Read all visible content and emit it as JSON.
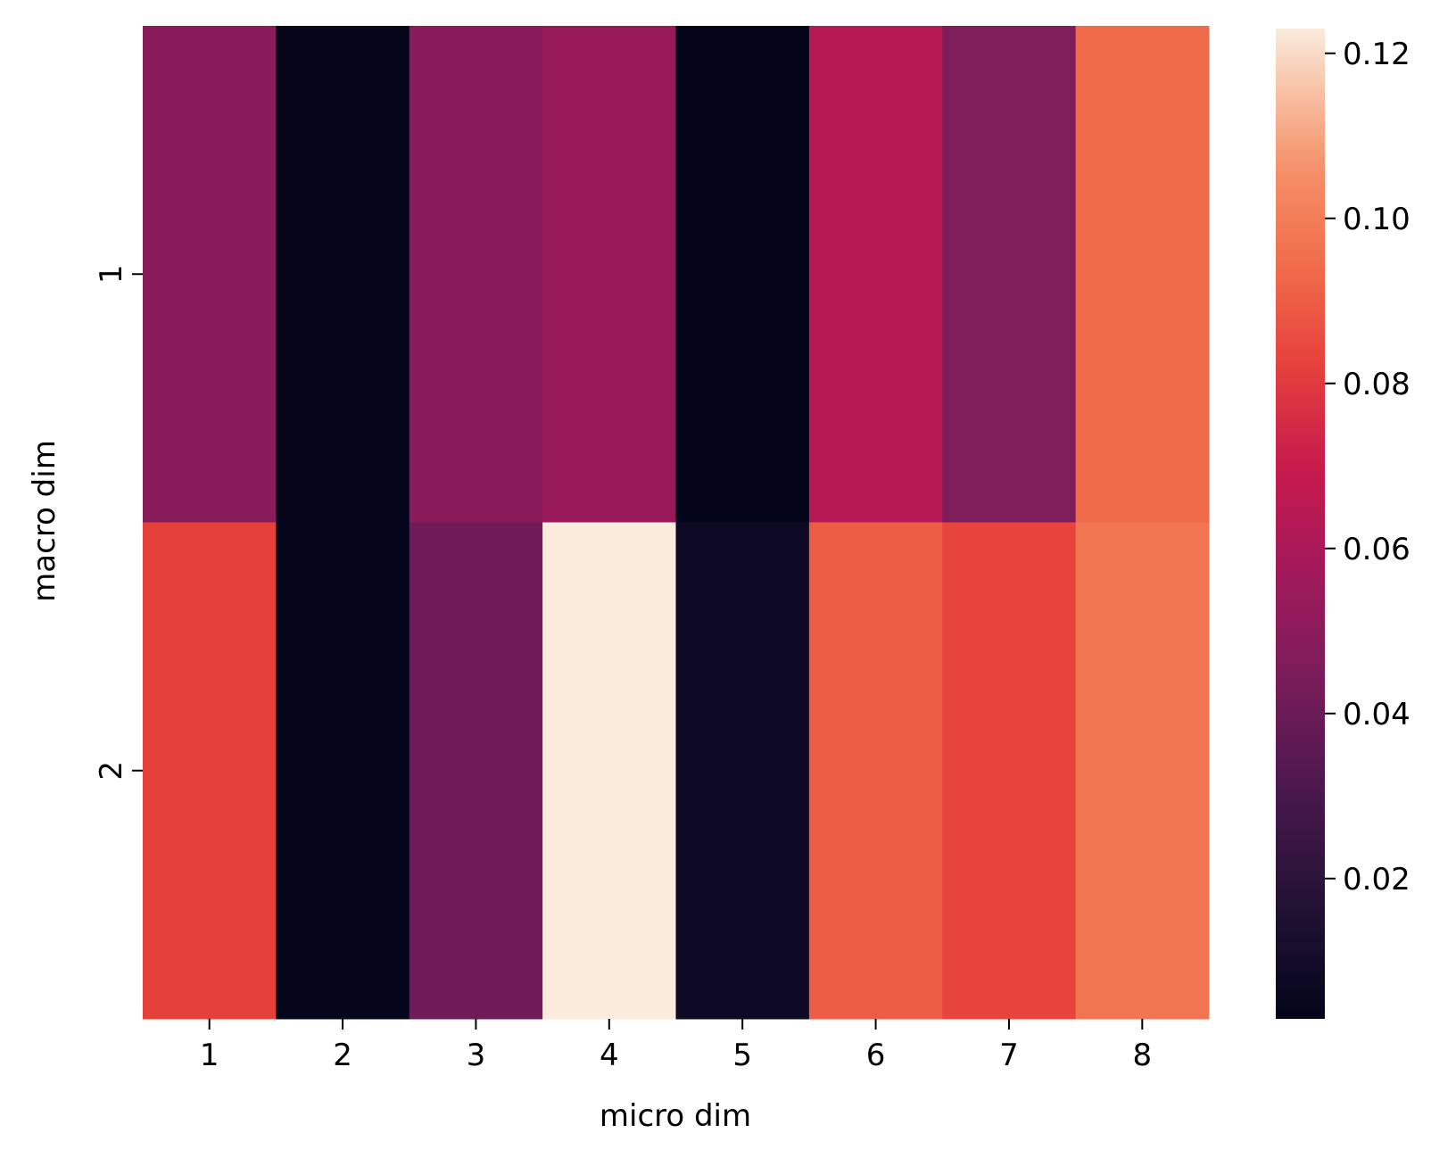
{
  "chart_data": {
    "type": "heatmap",
    "title": "",
    "xlabel": "micro dim",
    "ylabel": "macro dim",
    "x_categories": [
      "1",
      "2",
      "3",
      "4",
      "5",
      "6",
      "7",
      "8"
    ],
    "y_categories": [
      "1",
      "2"
    ],
    "values": [
      [
        0.049,
        0.004,
        0.049,
        0.054,
        0.003,
        0.064,
        0.046,
        0.094
      ],
      [
        0.082,
        0.004,
        0.041,
        0.123,
        0.008,
        0.09,
        0.083,
        0.097
      ]
    ],
    "colorbar": {
      "min": 0.003,
      "max": 0.123,
      "ticks": [
        0.02,
        0.04,
        0.06,
        0.08,
        0.1,
        0.12
      ],
      "tick_labels": [
        "0.02",
        "0.04",
        "0.06",
        "0.08",
        "0.10",
        "0.12"
      ]
    },
    "colormap": "rocket",
    "grid": false,
    "legend": "colorbar-right"
  }
}
